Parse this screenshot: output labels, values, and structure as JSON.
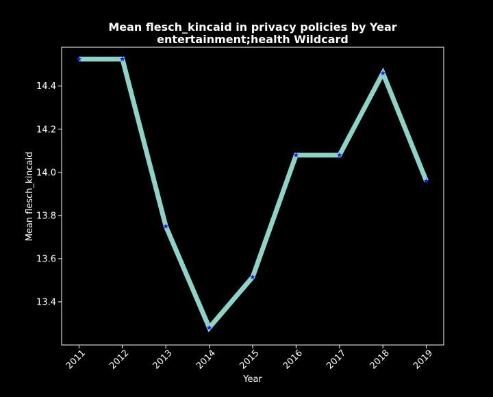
{
  "chart_data": {
    "type": "line",
    "title_line1": "Mean flesch_kincaid in privacy policies by Year",
    "title_line2": "entertainment;health Wildcard",
    "xlabel": "Year",
    "ylabel": "Mean flesch_kincaid",
    "x": [
      "2011",
      "2012",
      "2013",
      "2014",
      "2015",
      "2016",
      "2017",
      "2018",
      "2019"
    ],
    "series": [
      {
        "values": [
          14.525,
          14.525,
          13.75,
          13.28,
          13.515,
          14.08,
          14.08,
          14.46,
          13.96
        ]
      }
    ],
    "xlim": [
      -0.4,
      8.4
    ],
    "ylim": [
      13.2,
      14.58
    ],
    "yticks": [
      "13.4",
      "13.6",
      "13.8",
      "14.0",
      "14.2",
      "14.4"
    ],
    "grid": false,
    "legend": "none",
    "colors": {
      "background": "#000000",
      "line": "#8dd3c7",
      "marker": "#1a1aff",
      "axes": "#ffffff",
      "text": "#ffffff"
    }
  }
}
